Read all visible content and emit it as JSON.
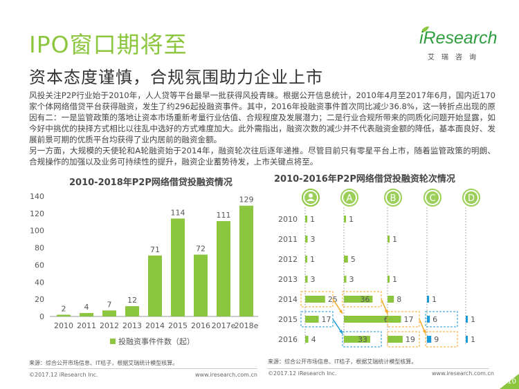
{
  "header": {
    "title": "IPO窗口期将至",
    "subtitle": "资本态度谨慎，合规氛围助力企业上市"
  },
  "logo": {
    "word": "iResearch",
    "sub": "艾瑞咨询"
  },
  "body_text": {
    "para1": "风投关注P2P行业始于2010年，人人贷等平台最早一批获得风投青睐。根据公开信息统计，2010年4月至2017年6月，国内近170家个体网络借贷平台获得融资，发生了约296起投融资事件。其中，2016年投融资事件首次同比减少36.8%，这一转折点出现的原因有二：一是监管政策的落地让资本市场重新考量行业估值、合规程度及发展潜力；二是行业合规所带来的同质化问题开始显露，如今好中挑优的抉择方式相比以往乱中选好的方式难度加大。此外需指出，融资次数的减少并不代表融资金额的降低，基本面良好、发展前景可期的优质平台均获得了业内居前的融资金额。",
    "para2": "另一方面，大规模的天使轮和A轮融资始于2014年，融资轮次往后逐年递推。尽管目前只有零星平台上市，随着监管政策的明朗、合规操作的加强以及业务可持续性的提升，融资企业蓄势待发，上市关键点将至。"
  },
  "chart_data": [
    {
      "type": "bar",
      "title": "2010-2018年P2P网络借贷投融资情况",
      "categories": [
        "2010",
        "2011",
        "2012",
        "2013",
        "2014",
        "2015",
        "2016",
        "2017e",
        "2018e"
      ],
      "values": [
        2,
        4,
        7,
        12,
        71,
        114,
        72,
        111,
        129
      ],
      "ylim": [
        0,
        140
      ],
      "yticks": [
        0,
        20,
        40,
        60,
        80,
        100,
        120,
        140
      ],
      "legend": "投融资事件件数（起）",
      "legend_position": "bottom",
      "color": "#8cc63f",
      "source": "来源：综合公开市场信息、IT桔子，根据艾瑞统计模型核算。"
    },
    {
      "type": "bar",
      "title": "2010-2016年P2P网络借贷投融资轮次情况",
      "rows": [
        "2010",
        "2011",
        "2012",
        "2013",
        "2014",
        "2015",
        "2016"
      ],
      "rounds": [
        "angel",
        "A",
        "B",
        "C",
        "D"
      ],
      "round_labels": [
        "",
        "A",
        "B",
        "C",
        "D"
      ],
      "series": [
        {
          "name": "天使轮",
          "values": [
            1,
            3,
            1,
            3,
            25,
            17,
            4
          ]
        },
        {
          "name": "A",
          "values": [
            1,
            null,
            5,
            3,
            36,
            66,
            33
          ]
        },
        {
          "name": "B",
          "values": [
            null,
            1,
            null,
            1,
            8,
            17,
            19
          ]
        },
        {
          "name": "C",
          "values": [
            null,
            null,
            null,
            null,
            1,
            6,
            9
          ]
        },
        {
          "name": "D",
          "values": [
            null,
            null,
            null,
            null,
            null,
            1,
            1
          ]
        }
      ],
      "colors": {
        "green": "#8cc63f",
        "blue": "#1a9ad6",
        "arrow_orange": "#f5a623",
        "arrow_blue": "#1a9ad6"
      },
      "source": "来源：综合公开市场信息、IT桔子，根据艾瑞统计模型核算。"
    }
  ],
  "footer": {
    "left1": "©2017.12 iResearch Inc.",
    "right1": "www.iresearch.com.cn",
    "left2": "©2017.12 iResearch Inc.",
    "right2": "www.iresearch.com.cn",
    "page": "10"
  }
}
